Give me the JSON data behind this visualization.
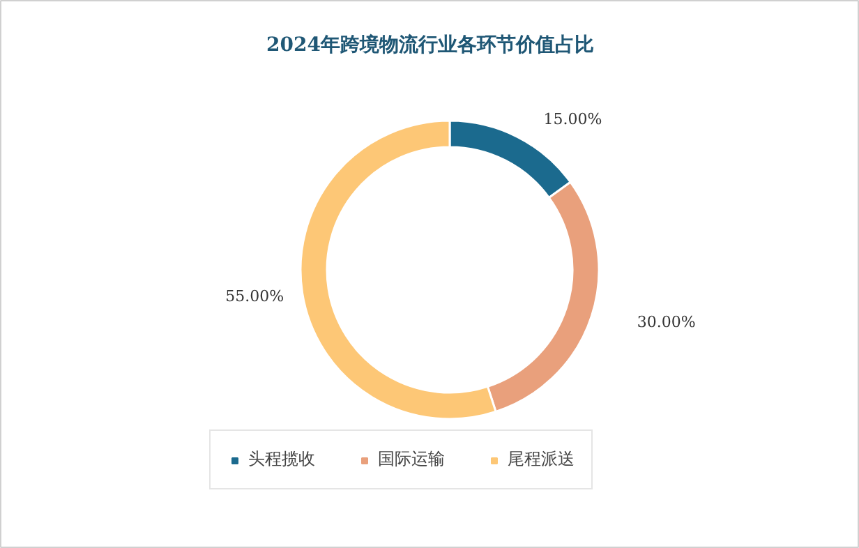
{
  "chart_data": {
    "type": "donut",
    "title": "2024年跨境物流行业各环节价值占比",
    "categories": [
      "头程揽收",
      "国际运输",
      "尾程派送"
    ],
    "values": [
      15,
      30,
      55
    ],
    "colors": [
      "#1b6a8e",
      "#e9a07c",
      "#fdc776"
    ],
    "value_labels": [
      "15.00%",
      "30.00%",
      "55.00%"
    ],
    "legend": "bottom"
  }
}
